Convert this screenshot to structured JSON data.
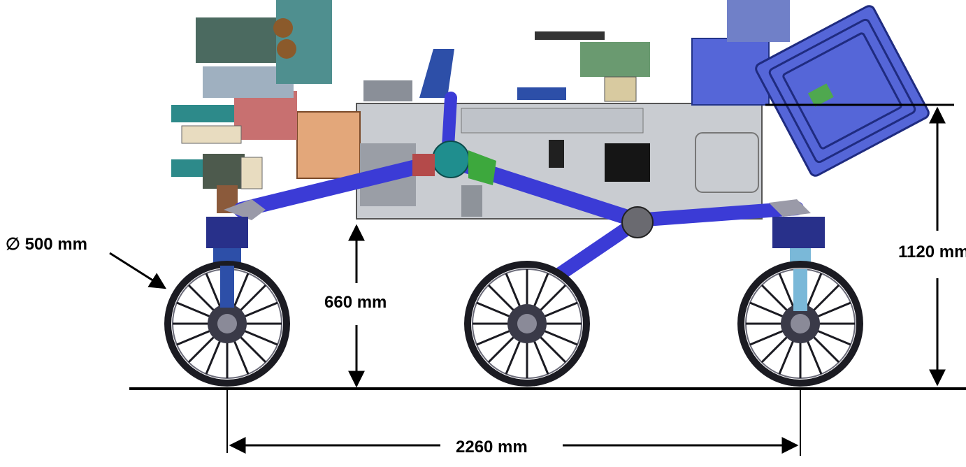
{
  "dimensions": {
    "wheel_diameter": "∅ 500 mm",
    "ground_clearance": "660 mm",
    "overall_height": "1120 mm",
    "wheelbase": "2260 mm"
  },
  "colors": {
    "chassis_gray": "#c9ccd1",
    "rocker_blue": "#3b3bd6",
    "rtg_blue": "#5566d8",
    "joint_red": "#b44a4a",
    "differential_teal": "#1f8e8e",
    "wheel_dark": "#1b1b22",
    "orange_panel": "#e3a77a",
    "line": "#000000"
  }
}
